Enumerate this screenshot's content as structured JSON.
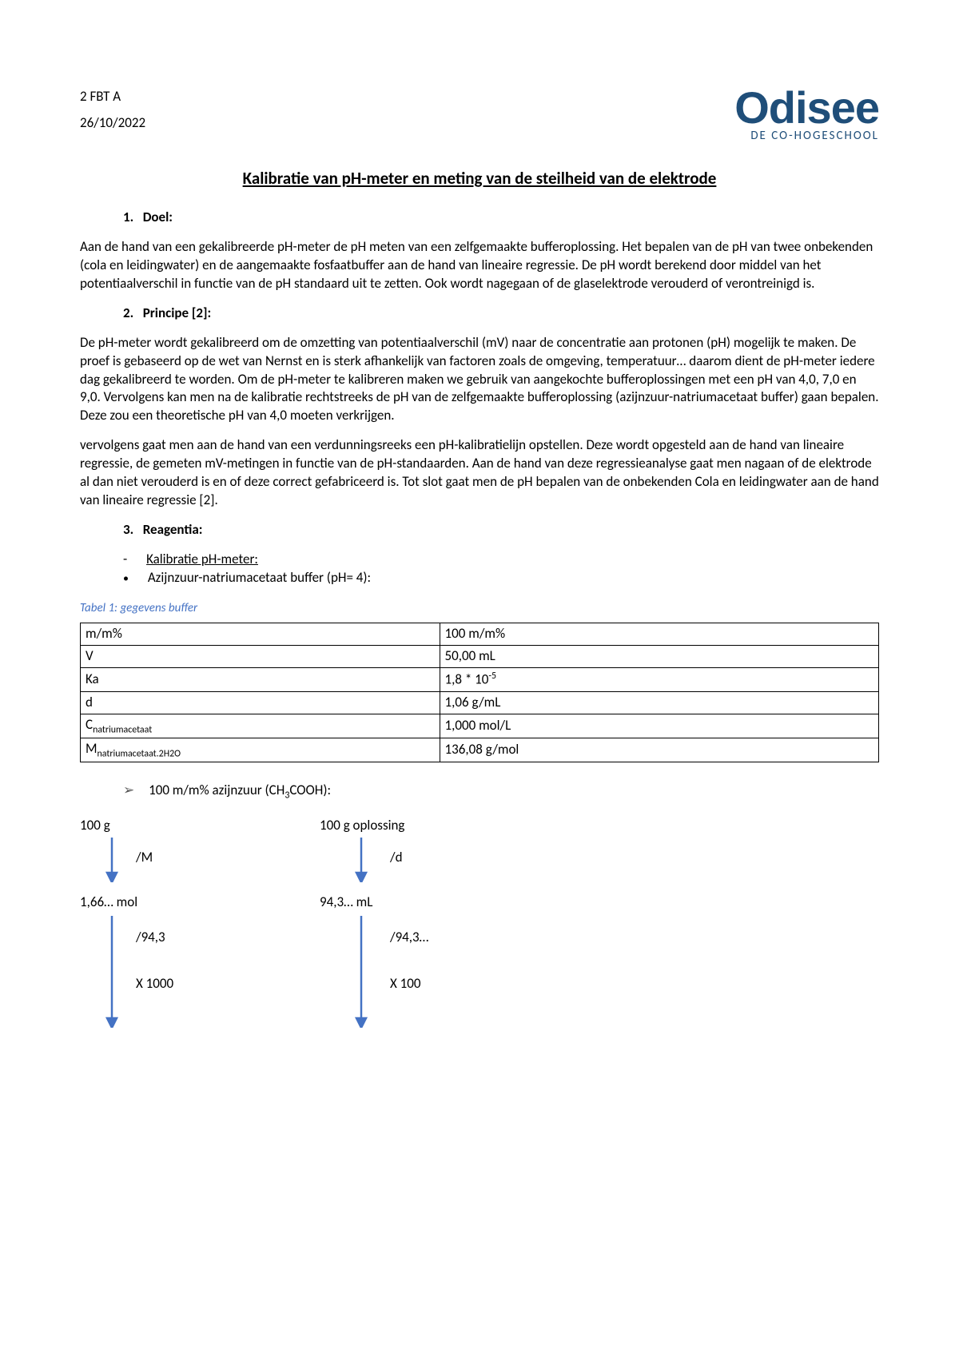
{
  "header": {
    "course": "2 FBT A",
    "date": "26/10/2022",
    "logo_main": "Odisee",
    "logo_sub": "DE CO-HOGESCHOOL"
  },
  "title": "Kalibratie van pH-meter en meting van de steilheid van de elektrode",
  "sections": {
    "s1": {
      "num": "1.",
      "label": "Doel:"
    },
    "s2": {
      "num": "2.",
      "label": "Principe [2]:"
    },
    "s3": {
      "num": "3.",
      "label": "Reagentia:"
    }
  },
  "doel_p": "Aan de hand van een gekalibreerde pH-meter de pH meten van een zelfgemaakte bufferoplossing. Het bepalen van de pH van twee onbekenden (cola en leidingwater) en de aangemaakte fosfaatbuffer aan de hand van lineaire regressie. De pH wordt berekend door middel van het potentiaalverschil in functie van de pH standaard uit te zetten. Ook wordt nagegaan of de glaselektrode verouderd of verontreinigd is.",
  "principe_p1": "De pH-meter wordt gekalibreerd om de omzetting van potentiaalverschil (mV) naar de concentratie aan protonen (pH) mogelijk te maken. De proef is gebaseerd op de wet van Nernst en is sterk afhankelijk van factoren zoals de omgeving, temperatuur… daarom dient de pH-meter iedere dag gekalibreerd te worden. Om de pH-meter te kalibreren maken we gebruik van aangekochte bufferoplossingen met een pH van 4,0, 7,0 en 9,0. Vervolgens kan men na de kalibratie rechtstreeks de pH van de zelfgemaakte bufferoplossing (azijnzuur-natriumacetaat buffer) gaan bepalen. Deze zou een theoretische pH van 4,0 moeten verkrijgen.",
  "principe_p2": "vervolgens gaat men aan de hand van een verdunningsreeks een pH-kalibratielijn opstellen. Deze wordt opgesteld aan de hand van lineaire regressie, de gemeten mV-metingen in functie van de pH-standaarden. Aan de hand van deze regressieanalyse gaat men nagaan of de elektrode al dan niet verouderd is en of deze correct gefabriceerd is. Tot slot gaat men de pH bepalen van de onbekenden Cola en leidingwater aan de hand van lineaire regressie [2].",
  "reagentia": {
    "dash": "Kalibratie pH-meter:",
    "bullet": "Azijnzuur-natriumacetaat buffer (pH= 4):"
  },
  "table_caption": "Tabel 1: gegevens buffer",
  "table_rows": [
    {
      "k": "m/m%",
      "v": "100 m/m%"
    },
    {
      "k": "V",
      "v": "50,00 mL"
    },
    {
      "k": "Ka",
      "v_html": "1,8 * 10<sup>-5</sup>"
    },
    {
      "k": "d",
      "v": "1,06 g/mL"
    },
    {
      "k_html": "C<sub>natriumacetaat</sub>",
      "v": "1,000 mol/L"
    },
    {
      "k_html": "M<sub>natriumacetaat.2H2O</sub>",
      "v": "136,08 g/mol"
    }
  ],
  "chevron_html": "100 m/m% azijnzuur (CH<sub>3</sub>COOH):",
  "calc": {
    "l1a": "100 g",
    "l1b": "100 g oplossing",
    "op1a": "/M",
    "op1b": "/d",
    "l2a": "1,66… mol",
    "l2b": "94,3… mL",
    "op2a": "/94,3",
    "op2b": "/94,3…",
    "op3a": "X 1000",
    "op3b": "X 100",
    "arrow_color": "#4472c4"
  }
}
